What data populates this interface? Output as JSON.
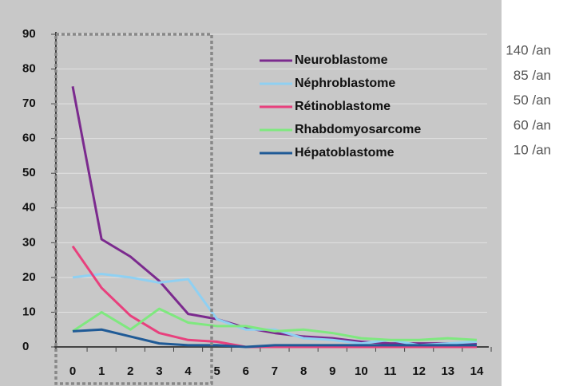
{
  "chart_data": {
    "type": "line",
    "categories": [
      "0",
      "1",
      "2",
      "3",
      "4",
      "5",
      "6",
      "7",
      "8",
      "9",
      "10",
      "11",
      "12",
      "13",
      "14"
    ],
    "ylim": [
      0,
      90
    ],
    "yticks": [
      0,
      10,
      20,
      30,
      40,
      50,
      60,
      70,
      80,
      90
    ],
    "grid": true,
    "series": [
      {
        "name": "Neuroblastome",
        "color": "#7b2a8e",
        "values": [
          75,
          31,
          26,
          19,
          9.5,
          8,
          5.5,
          4,
          3,
          2.5,
          1.5,
          1,
          1,
          1,
          1
        ]
      },
      {
        "name": "Néphroblastome",
        "color": "#8fd0f2",
        "values": [
          20,
          21,
          20,
          18.5,
          19.5,
          8,
          5,
          5,
          2.5,
          2,
          1,
          2,
          0.5,
          1,
          1.5
        ]
      },
      {
        "name": "Rétinoblastome",
        "color": "#e8407d",
        "values": [
          29,
          17,
          9,
          4,
          2,
          1.5,
          0,
          0,
          0,
          0,
          0,
          0,
          0,
          0,
          0
        ]
      },
      {
        "name": "Rhabdomyosarcome",
        "color": "#7fe87f",
        "values": [
          4.5,
          10,
          5,
          11,
          7,
          6,
          6,
          4.5,
          5,
          4,
          2.5,
          2,
          2,
          2.5,
          2
        ]
      },
      {
        "name": "Hépatoblastome",
        "color": "#1f5a96",
        "values": [
          4.5,
          5,
          3,
          1,
          0.5,
          0.5,
          0,
          0.5,
          0.5,
          0.5,
          0.5,
          0.5,
          0.5,
          0.5,
          0.5
        ]
      }
    ],
    "annotations": [
      "140 /an",
      "85 /an",
      "50 /an",
      "60 /an",
      "10 /an"
    ]
  }
}
